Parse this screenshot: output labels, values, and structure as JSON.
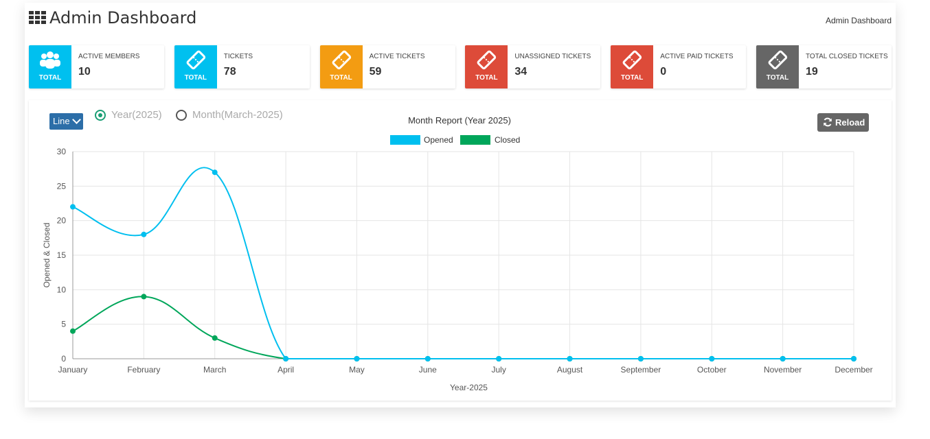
{
  "header": {
    "title": "Admin Dashboard",
    "breadcrumb": "Admin Dashboard"
  },
  "cards": [
    {
      "label": "ACTIVE MEMBERS",
      "value": "10",
      "total": "TOTAL",
      "color": "#00c0ef",
      "icon": "users-icon"
    },
    {
      "label": "TICKETS",
      "value": "78",
      "total": "TOTAL",
      "color": "#00c0ef",
      "icon": "ticket-icon"
    },
    {
      "label": "ACTIVE TICKETS",
      "value": "59",
      "total": "TOTAL",
      "color": "#f39c12",
      "icon": "ticket-icon"
    },
    {
      "label": "UNASSIGNED TICKETS",
      "value": "34",
      "total": "TOTAL",
      "color": "#dd4b39",
      "icon": "ticket-icon"
    },
    {
      "label": "ACTIVE PAID TICKETS",
      "value": "0",
      "total": "TOTAL",
      "color": "#dd4b39",
      "icon": "ticket-icon"
    },
    {
      "label": "TOTAL CLOSED TICKETS",
      "value": "19",
      "total": "TOTAL",
      "color": "#666666",
      "icon": "ticket-icon"
    }
  ],
  "controls": {
    "chart_type": "Line",
    "radio_year": "Year(2025)",
    "radio_month": "Month(March-2025)",
    "selected": "year",
    "reload_label": "Reload"
  },
  "chart_data": {
    "type": "line",
    "title": "Month Report (Year 2025)",
    "xlabel": "Year-2025",
    "ylabel": "Opened & Closed",
    "categories": [
      "January",
      "February",
      "March",
      "April",
      "May",
      "June",
      "July",
      "August",
      "September",
      "October",
      "November",
      "December"
    ],
    "series": [
      {
        "name": "Opened",
        "color": "#00bfef",
        "values": [
          22,
          18,
          27,
          0,
          0,
          0,
          0,
          0,
          0,
          0,
          0,
          0
        ]
      },
      {
        "name": "Closed",
        "color": "#00a65a",
        "values": [
          4,
          9,
          3,
          0,
          0,
          0,
          0,
          0,
          0,
          0,
          0,
          0
        ]
      }
    ],
    "ylim": [
      0,
      30
    ],
    "yticks": [
      0,
      5,
      10,
      15,
      20,
      25,
      30
    ],
    "grid": true,
    "legend_position": "top"
  }
}
